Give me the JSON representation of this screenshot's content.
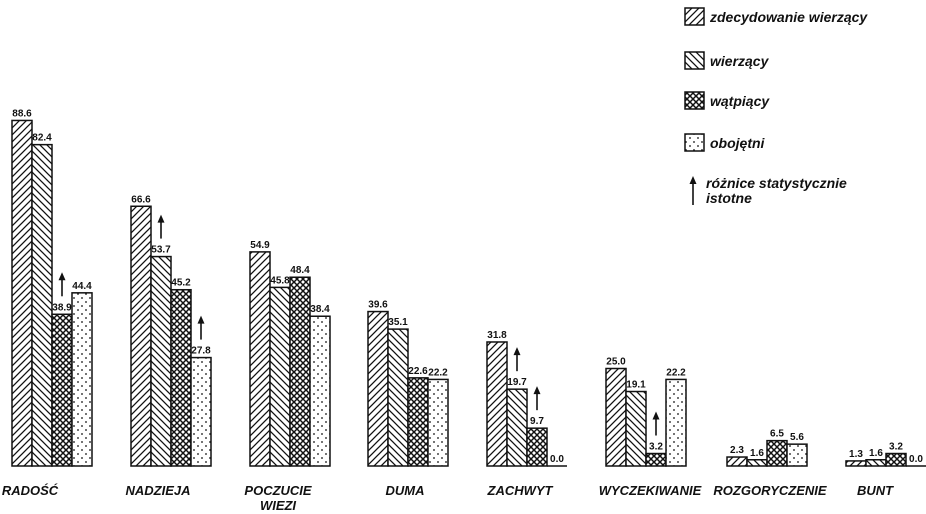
{
  "chart_data": {
    "type": "bar",
    "categories": [
      "RADOŚĆ",
      "NADZIEJA",
      "POCZUCIE WIEZI",
      "DUMA",
      "ZACHWYT",
      "WYCZEKIWANIE",
      "ROZGORYCZENIE",
      "BUNT"
    ],
    "series": [
      {
        "name": "zdecydowanie wierzący",
        "pattern": "diag-right",
        "values": [
          88.6,
          66.6,
          54.9,
          39.6,
          31.8,
          25.0,
          2.3,
          1.3
        ],
        "labels": [
          "88.6",
          "66.6",
          "54.9",
          "39.6",
          "31.8",
          "25.0",
          "2.3",
          "1.3"
        ]
      },
      {
        "name": "wierzący",
        "pattern": "diag-left",
        "values": [
          82.4,
          53.7,
          45.8,
          35.1,
          19.7,
          19.1,
          1.6,
          1.6
        ],
        "labels": [
          "82.4",
          "53.7",
          "45.8",
          "35.1",
          "19.7",
          "19.1",
          "1.6",
          "1.6"
        ]
      },
      {
        "name": "wątpiący",
        "pattern": "crosshatch",
        "values": [
          38.9,
          45.2,
          48.4,
          22.6,
          9.7,
          3.2,
          6.5,
          3.2
        ],
        "labels": [
          "38.9",
          "45.2",
          "48.4",
          "22.6",
          "9.7",
          "3.2",
          "6.5",
          "3.2"
        ]
      },
      {
        "name": "obojętni",
        "pattern": "dots",
        "values": [
          44.4,
          27.8,
          38.4,
          22.2,
          0.0,
          22.2,
          5.6,
          0.0
        ],
        "labels": [
          "44.4",
          "27.8",
          "38.4",
          "22.2",
          "0.0",
          "22.2",
          "5.6",
          "0.0"
        ]
      }
    ],
    "significance_arrows": [
      {
        "category": "RADOŚĆ",
        "series": "wątpiący"
      },
      {
        "category": "NADZIEJA",
        "series": "wierzący"
      },
      {
        "category": "NADZIEJA",
        "series": "obojętni"
      },
      {
        "category": "ZACHWYT",
        "series": "wierzący"
      },
      {
        "category": "ZACHWYT",
        "series": "wątpiący"
      },
      {
        "category": "WYCZEKIWANIE",
        "series": "wątpiący"
      }
    ],
    "arrow_legend": "różnice statystycznie istotne",
    "title": "",
    "xlabel": "",
    "ylabel": "",
    "ylim": [
      0,
      100
    ],
    "grid": false,
    "legend_position": "top-right"
  }
}
